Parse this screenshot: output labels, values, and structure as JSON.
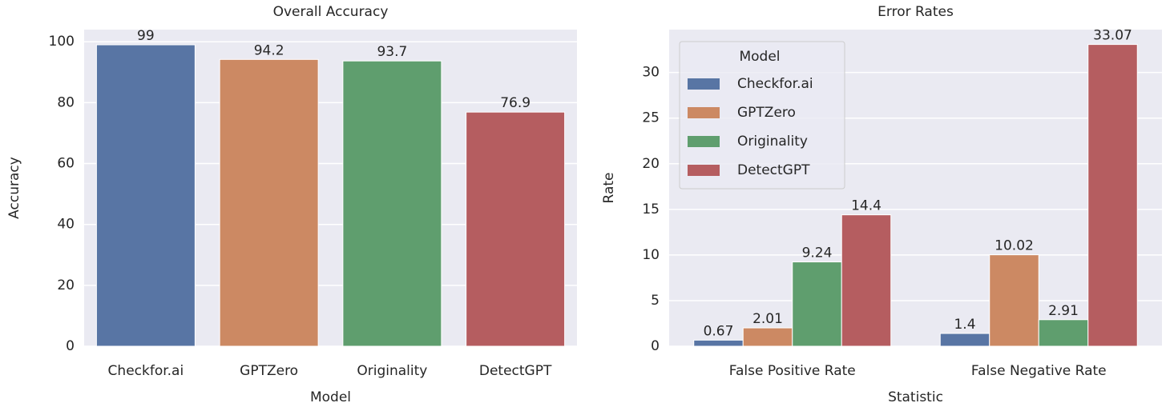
{
  "chart_data": [
    {
      "type": "bar",
      "title": "Overall Accuracy",
      "xlabel": "Model",
      "ylabel": "Accuracy",
      "categories": [
        "Checkfor.ai",
        "GPTZero",
        "Originality",
        "DetectGPT"
      ],
      "values": [
        99,
        94.2,
        93.7,
        76.9
      ],
      "colors": [
        "#5875a4",
        "#cc8963",
        "#5f9e6e",
        "#b55d60"
      ],
      "ylim": [
        0,
        104
      ],
      "yticks": [
        0,
        20,
        40,
        60,
        80,
        100
      ],
      "grid": true
    },
    {
      "type": "grouped_bar",
      "title": "Error Rates",
      "xlabel": "Statistic",
      "ylabel": "Rate",
      "categories": [
        "False Positive Rate",
        "False Negative Rate"
      ],
      "series": [
        {
          "name": "Checkfor.ai",
          "color": "#5875a4",
          "values": [
            0.67,
            1.4
          ]
        },
        {
          "name": "GPTZero",
          "color": "#cc8963",
          "values": [
            2.01,
            10.02
          ]
        },
        {
          "name": "Originality",
          "color": "#5f9e6e",
          "values": [
            9.24,
            2.91
          ]
        },
        {
          "name": "DetectGPT",
          "color": "#b55d60",
          "values": [
            14.4,
            33.07
          ]
        }
      ],
      "ylim": [
        0,
        34.7
      ],
      "yticks": [
        0,
        5,
        10,
        15,
        20,
        25,
        30
      ],
      "grid": true,
      "legend": "upper left",
      "legend_title": "Model"
    }
  ]
}
